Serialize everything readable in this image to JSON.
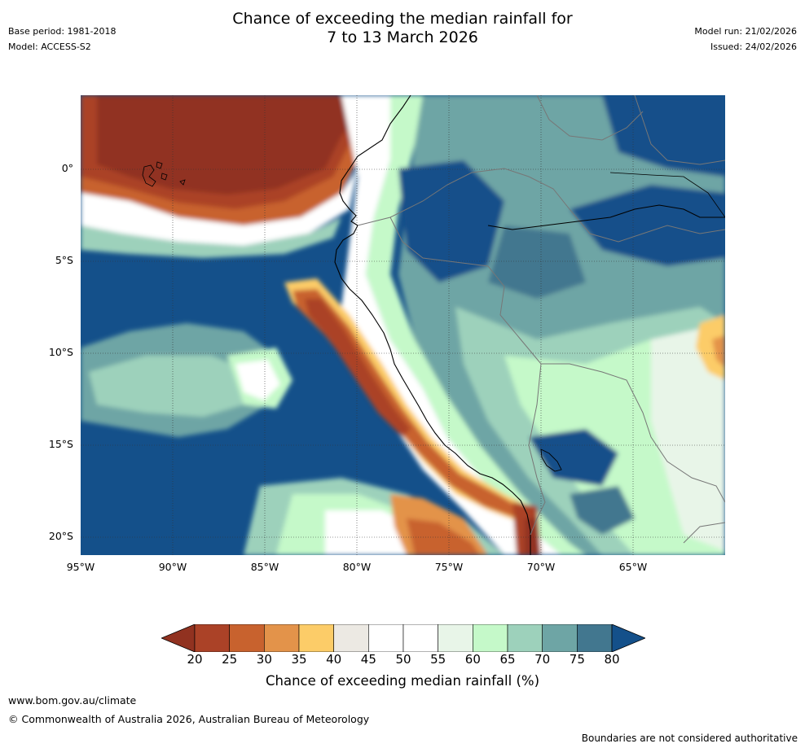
{
  "header": {
    "base_period": "Base period: 1981-2018",
    "model": "Model: ACCESS-S2",
    "title_line1": "Chance of exceeding the median rainfall for",
    "title_line2": "7 to 13 March 2026",
    "model_run": "Model run: 21/02/2026",
    "issued": "Issued: 24/02/2026"
  },
  "map": {
    "lat_labels": [
      "0°",
      "5°S",
      "10°S",
      "15°S",
      "20°S"
    ],
    "lon_labels": [
      "95°W",
      "90°W",
      "85°W",
      "80°W",
      "75°W",
      "70°W",
      "65°W"
    ]
  },
  "colorbar": {
    "ticks": [
      "20",
      "25",
      "30",
      "35",
      "40",
      "45",
      "50",
      "55",
      "60",
      "65",
      "70",
      "75",
      "80"
    ],
    "label": "Chance of exceeding median rainfall (%)",
    "below_color": "#913220",
    "above_color": "#14508a",
    "bin_colors": [
      "#ab4227",
      "#c8622e",
      "#e3934a",
      "#fccc68",
      "#ece9e3",
      "#ffffff",
      "#ffffff",
      "#e8f5e8",
      "#c5f9c9",
      "#9dd1bb",
      "#6ea5a5",
      "#42778f"
    ]
  },
  "footer": {
    "url": "www.bom.gov.au/climate",
    "copyright": "© Commonwealth of Australia 2026, Australian Bureau of Meteorology",
    "disclaimer": "Boundaries are not considered authoritative"
  }
}
